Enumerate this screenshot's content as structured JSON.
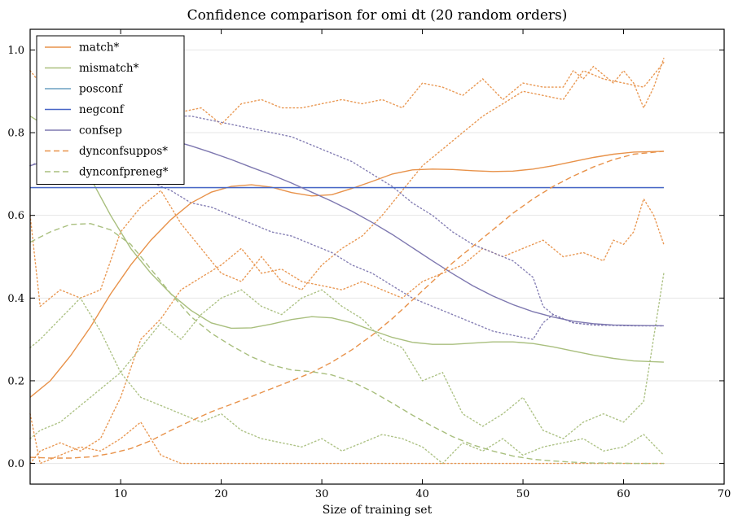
{
  "chart_data": {
    "type": "line",
    "title": "Confidence comparison for omi dt (20 random orders)",
    "xlabel": "Size of training set",
    "ylabel": "",
    "xlim": [
      1,
      70
    ],
    "ylim": [
      -0.05,
      1.05
    ],
    "xticks": [
      10,
      20,
      30,
      40,
      50,
      60,
      70
    ],
    "yticks": [
      0.0,
      0.2,
      0.4,
      0.6,
      0.8,
      1.0
    ],
    "ytick_labels": [
      "0.0",
      "0.2",
      "0.4",
      "0.6",
      "0.8",
      "1.0"
    ],
    "grid": "horizontal",
    "legend_position": "top-left",
    "series": [
      {
        "name": "match*",
        "color": "#e8924a",
        "dash": "solid",
        "x": [
          1,
          3,
          5,
          7,
          9,
          11,
          13,
          15,
          17,
          19,
          21,
          23,
          25,
          27,
          29,
          31,
          33,
          35,
          37,
          39,
          41,
          43,
          45,
          47,
          49,
          51,
          53,
          55,
          57,
          59,
          61,
          64
        ],
        "y": [
          0.16,
          0.2,
          0.26,
          0.33,
          0.41,
          0.48,
          0.54,
          0.59,
          0.63,
          0.656,
          0.67,
          0.674,
          0.668,
          0.655,
          0.647,
          0.65,
          0.665,
          0.682,
          0.7,
          0.71,
          0.712,
          0.711,
          0.708,
          0.706,
          0.707,
          0.712,
          0.72,
          0.73,
          0.74,
          0.748,
          0.753,
          0.755
        ]
      },
      {
        "name": "mismatch*",
        "color": "#a9bf7e",
        "dash": "solid",
        "x": [
          1,
          3,
          5,
          7,
          9,
          11,
          13,
          15,
          17,
          19,
          21,
          23,
          25,
          27,
          29,
          31,
          33,
          35,
          37,
          39,
          41,
          43,
          45,
          47,
          49,
          51,
          53,
          55,
          57,
          59,
          61,
          64
        ],
        "y": [
          0.84,
          0.81,
          0.76,
          0.69,
          0.6,
          0.52,
          0.46,
          0.41,
          0.37,
          0.34,
          0.327,
          0.328,
          0.337,
          0.348,
          0.355,
          0.352,
          0.34,
          0.322,
          0.305,
          0.293,
          0.288,
          0.288,
          0.291,
          0.294,
          0.294,
          0.29,
          0.282,
          0.272,
          0.262,
          0.254,
          0.248,
          0.245
        ]
      },
      {
        "name": "posconf",
        "color": "#6ba0c2",
        "dash": "solid",
        "x": [
          1,
          64
        ],
        "y": [
          0.667,
          0.667
        ]
      },
      {
        "name": "negconf",
        "color": "#4866c6",
        "dash": "solid",
        "x": [
          1,
          64
        ],
        "y": [
          0.667,
          0.667
        ]
      },
      {
        "name": "confsep",
        "color": "#7e78b0",
        "dash": "solid",
        "x": [
          1,
          3,
          5,
          7,
          9,
          11,
          13,
          15,
          17,
          19,
          21,
          23,
          25,
          27,
          29,
          31,
          33,
          35,
          37,
          39,
          41,
          43,
          45,
          47,
          49,
          51,
          53,
          55,
          57,
          59,
          61,
          64
        ],
        "y": [
          0.72,
          0.735,
          0.755,
          0.775,
          0.788,
          0.793,
          0.79,
          0.782,
          0.768,
          0.752,
          0.735,
          0.716,
          0.698,
          0.678,
          0.656,
          0.634,
          0.61,
          0.583,
          0.554,
          0.522,
          0.49,
          0.459,
          0.43,
          0.405,
          0.384,
          0.367,
          0.354,
          0.344,
          0.338,
          0.335,
          0.334,
          0.333
        ]
      },
      {
        "name": "dynconfsuppos*",
        "color": "#e8924a",
        "dash": "dashed",
        "x": [
          1,
          3,
          5,
          7,
          9,
          11,
          13,
          15,
          17,
          19,
          21,
          23,
          25,
          27,
          29,
          31,
          33,
          35,
          37,
          39,
          41,
          43,
          45,
          47,
          49,
          51,
          53,
          55,
          57,
          59,
          61,
          64
        ],
        "y": [
          0.015,
          0.013,
          0.013,
          0.016,
          0.024,
          0.036,
          0.055,
          0.08,
          0.103,
          0.125,
          0.143,
          0.162,
          0.181,
          0.2,
          0.22,
          0.245,
          0.275,
          0.31,
          0.35,
          0.395,
          0.44,
          0.485,
          0.525,
          0.565,
          0.605,
          0.64,
          0.67,
          0.695,
          0.717,
          0.735,
          0.748,
          0.755
        ]
      },
      {
        "name": "dynconfpreneg*",
        "color": "#a9bf7e",
        "dash": "dashed",
        "x": [
          1,
          3,
          5,
          7,
          9,
          11,
          13,
          15,
          17,
          19,
          21,
          23,
          25,
          27,
          29,
          31,
          33,
          35,
          37,
          39,
          41,
          43,
          45,
          47,
          49,
          51,
          53,
          55,
          57,
          59,
          61,
          64
        ],
        "y": [
          0.535,
          0.56,
          0.578,
          0.58,
          0.565,
          0.53,
          0.47,
          0.41,
          0.355,
          0.315,
          0.285,
          0.258,
          0.238,
          0.226,
          0.222,
          0.214,
          0.198,
          0.174,
          0.146,
          0.117,
          0.09,
          0.065,
          0.045,
          0.03,
          0.018,
          0.01,
          0.006,
          0.003,
          0.001,
          0.001,
          0.0,
          0.0
        ]
      }
    ],
    "dotted_series": [
      {
        "color": "#e8924a",
        "x": [
          1,
          2,
          4,
          6,
          8,
          10,
          12,
          14,
          16,
          18,
          20,
          22,
          24,
          26,
          28,
          30,
          32,
          34,
          36,
          38,
          40,
          42,
          44,
          46,
          48,
          50,
          52,
          54,
          55,
          56,
          57,
          58,
          59,
          60,
          61,
          62,
          63,
          64
        ],
        "y": [
          0.95,
          0.92,
          0.88,
          0.84,
          0.85,
          0.8,
          0.84,
          0.83,
          0.85,
          0.86,
          0.82,
          0.87,
          0.88,
          0.86,
          0.86,
          0.87,
          0.88,
          0.87,
          0.88,
          0.86,
          0.92,
          0.91,
          0.89,
          0.93,
          0.88,
          0.92,
          0.91,
          0.91,
          0.95,
          0.93,
          0.96,
          0.94,
          0.92,
          0.95,
          0.92,
          0.86,
          0.91,
          0.98
        ]
      },
      {
        "color": "#e8924a",
        "x": [
          1,
          2,
          4,
          6,
          8,
          10,
          12,
          14,
          16,
          18,
          20,
          22,
          24,
          26,
          28,
          30,
          32,
          34,
          36,
          38,
          40,
          42,
          44,
          46,
          48,
          50,
          52,
          54,
          56,
          58,
          60,
          62,
          64
        ],
        "y": [
          0.6,
          0.38,
          0.42,
          0.4,
          0.42,
          0.56,
          0.62,
          0.66,
          0.58,
          0.52,
          0.46,
          0.44,
          0.5,
          0.44,
          0.42,
          0.48,
          0.52,
          0.55,
          0.6,
          0.66,
          0.72,
          0.76,
          0.8,
          0.84,
          0.87,
          0.9,
          0.89,
          0.88,
          0.95,
          0.93,
          0.92,
          0.91,
          0.97
        ]
      },
      {
        "color": "#e8924a",
        "x": [
          1,
          2,
          4,
          6,
          8,
          10,
          12,
          14,
          16,
          18,
          20,
          22,
          24,
          26,
          28,
          30,
          32,
          34,
          36,
          38,
          40,
          42,
          44,
          46,
          48,
          50,
          52,
          54,
          56,
          58,
          59,
          60,
          61,
          62,
          63,
          64
        ],
        "y": [
          0.0,
          0.03,
          0.05,
          0.03,
          0.06,
          0.16,
          0.3,
          0.35,
          0.42,
          0.45,
          0.48,
          0.52,
          0.46,
          0.47,
          0.44,
          0.43,
          0.42,
          0.44,
          0.42,
          0.4,
          0.44,
          0.46,
          0.48,
          0.52,
          0.5,
          0.52,
          0.54,
          0.5,
          0.51,
          0.49,
          0.54,
          0.53,
          0.56,
          0.64,
          0.6,
          0.53
        ]
      },
      {
        "color": "#a9bf7e",
        "x": [
          1,
          2,
          4,
          6,
          8,
          10,
          12,
          14,
          16,
          18,
          20,
          22,
          24,
          26,
          28,
          30,
          32,
          34,
          36,
          38,
          40,
          42,
          44,
          46,
          48,
          50,
          52,
          54,
          56,
          58,
          60,
          62,
          64
        ],
        "y": [
          0.28,
          0.3,
          0.35,
          0.4,
          0.32,
          0.22,
          0.16,
          0.14,
          0.12,
          0.1,
          0.12,
          0.08,
          0.06,
          0.05,
          0.04,
          0.06,
          0.03,
          0.05,
          0.07,
          0.06,
          0.04,
          0.0,
          0.05,
          0.03,
          0.06,
          0.02,
          0.04,
          0.05,
          0.06,
          0.03,
          0.04,
          0.07,
          0.02
        ]
      },
      {
        "color": "#a9bf7e",
        "x": [
          1,
          2,
          4,
          6,
          8,
          10,
          12,
          14,
          16,
          18,
          20,
          22,
          24,
          26,
          28,
          30,
          32,
          34,
          36,
          38,
          40,
          42,
          44,
          46,
          48,
          50,
          52,
          54,
          56,
          58,
          60,
          62,
          64
        ],
        "y": [
          0.06,
          0.08,
          0.1,
          0.14,
          0.18,
          0.22,
          0.28,
          0.34,
          0.3,
          0.36,
          0.4,
          0.42,
          0.38,
          0.36,
          0.4,
          0.42,
          0.38,
          0.35,
          0.3,
          0.28,
          0.2,
          0.22,
          0.12,
          0.09,
          0.12,
          0.16,
          0.08,
          0.06,
          0.1,
          0.12,
          0.1,
          0.15,
          0.46
        ]
      },
      {
        "color": "#e8924a",
        "x": [
          1,
          2,
          4,
          6,
          8,
          10,
          12,
          14,
          16,
          18,
          20,
          22,
          24,
          26,
          28,
          30,
          32,
          34,
          36,
          38,
          40,
          42,
          44,
          46,
          48,
          50,
          52,
          54,
          56,
          58,
          60,
          62,
          64
        ],
        "y": [
          0.12,
          0.0,
          0.02,
          0.04,
          0.03,
          0.06,
          0.1,
          0.02,
          0.0,
          0.0,
          0.0,
          0.0,
          0.0,
          0.0,
          0.0,
          0.0,
          0.0,
          0.0,
          0.0,
          0.0,
          0.0,
          0.0,
          0.0,
          0.0,
          0.0,
          0.0,
          0.0,
          0.0,
          0.0,
          0.0,
          0.0,
          0.0,
          0.0
        ]
      },
      {
        "color": "#7e78b0",
        "x": [
          1,
          3,
          5,
          7,
          9,
          11,
          13,
          15,
          17,
          19,
          21,
          23,
          25,
          27,
          29,
          31,
          33,
          35,
          37,
          39,
          41,
          43,
          45,
          47,
          49,
          51,
          52,
          53,
          55,
          57,
          59,
          61,
          64
        ],
        "y": [
          0.72,
          0.74,
          0.76,
          0.78,
          0.8,
          0.82,
          0.84,
          0.84,
          0.84,
          0.83,
          0.82,
          0.81,
          0.8,
          0.79,
          0.77,
          0.75,
          0.73,
          0.7,
          0.67,
          0.63,
          0.6,
          0.56,
          0.53,
          0.51,
          0.49,
          0.45,
          0.38,
          0.36,
          0.34,
          0.335,
          0.334,
          0.333,
          0.333
        ]
      },
      {
        "color": "#7e78b0",
        "x": [
          1,
          3,
          5,
          7,
          9,
          11,
          13,
          15,
          17,
          19,
          21,
          23,
          25,
          27,
          29,
          31,
          33,
          35,
          37,
          39,
          41,
          43,
          45,
          47,
          49,
          51,
          52,
          53,
          55,
          57,
          59,
          61,
          64
        ],
        "y": [
          0.72,
          0.74,
          0.75,
          0.74,
          0.72,
          0.7,
          0.68,
          0.66,
          0.63,
          0.62,
          0.6,
          0.58,
          0.56,
          0.55,
          0.53,
          0.51,
          0.48,
          0.46,
          0.43,
          0.4,
          0.38,
          0.36,
          0.34,
          0.32,
          0.31,
          0.3,
          0.34,
          0.36,
          0.34,
          0.335,
          0.334,
          0.333,
          0.333
        ]
      }
    ]
  }
}
